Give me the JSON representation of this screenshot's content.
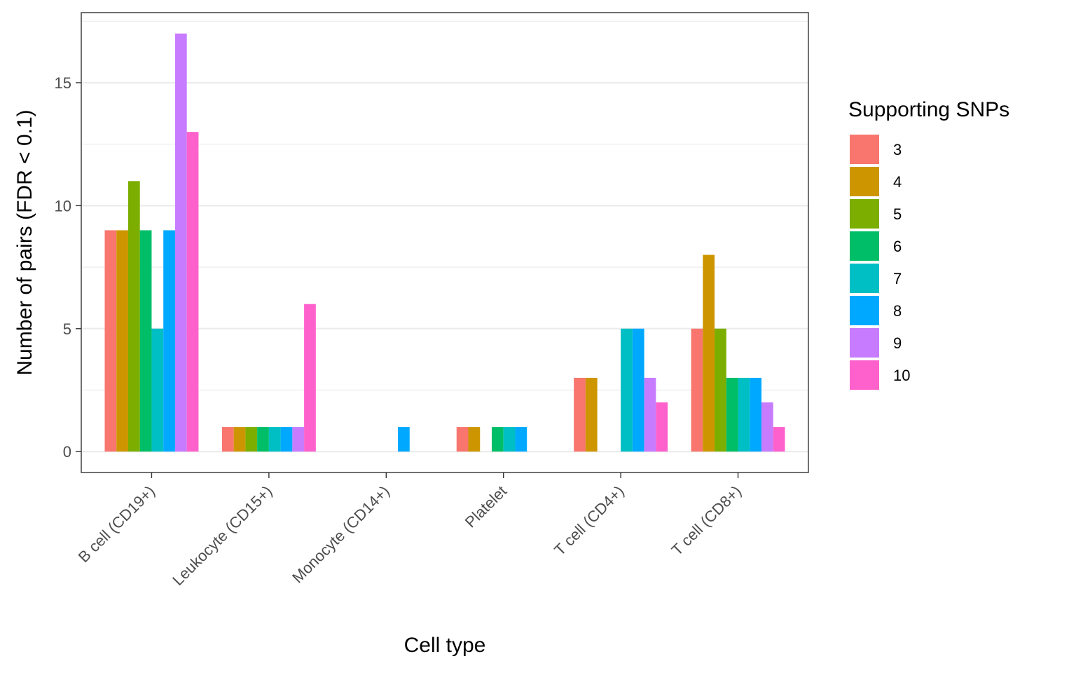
{
  "chart_data": {
    "type": "bar",
    "title": "",
    "xlabel": "Cell type",
    "ylabel": "Number of pairs (FDR < 0.1)",
    "ylim": [
      -0.85,
      17.85
    ],
    "yticks": [
      0,
      5,
      10,
      15
    ],
    "grid": true,
    "legend_position": "right",
    "legend_title": "Supporting SNPs",
    "categories": [
      "B cell (CD19+)",
      "Leukocyte (CD15+)",
      "Monocyte (CD14+)",
      "Platelet",
      "T cell (CD4+)",
      "T cell (CD8+)"
    ],
    "series": [
      {
        "name": "3",
        "color": "#F8766D",
        "values": [
          9,
          1,
          0,
          1,
          3,
          5
        ]
      },
      {
        "name": "4",
        "color": "#CD9600",
        "values": [
          9,
          1,
          0,
          1,
          3,
          8
        ]
      },
      {
        "name": "5",
        "color": "#7CAE00",
        "values": [
          11,
          1,
          0,
          0,
          0,
          5
        ]
      },
      {
        "name": "6",
        "color": "#00BE67",
        "values": [
          9,
          1,
          0,
          1,
          0,
          3
        ]
      },
      {
        "name": "7",
        "color": "#00BFC4",
        "values": [
          5,
          1,
          0,
          1,
          5,
          3
        ]
      },
      {
        "name": "8",
        "color": "#00A9FF",
        "values": [
          9,
          1,
          1,
          1,
          5,
          3
        ]
      },
      {
        "name": "9",
        "color": "#C77CFF",
        "values": [
          17,
          1,
          0,
          0,
          3,
          2
        ]
      },
      {
        "name": "10",
        "color": "#FF61CC",
        "values": [
          13,
          6,
          0,
          0,
          2,
          1
        ]
      }
    ]
  }
}
